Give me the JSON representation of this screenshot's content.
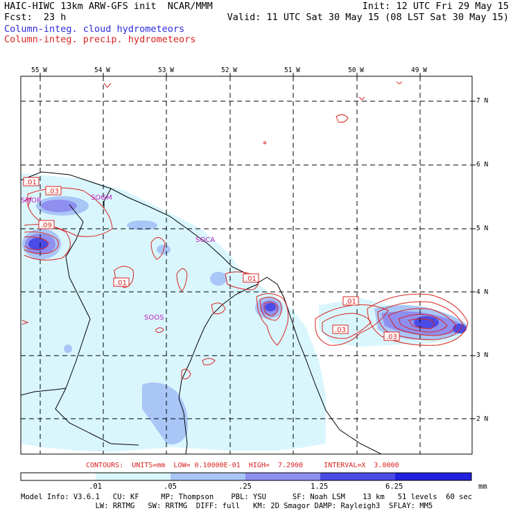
{
  "header": {
    "title": "HAIC-HIWC 13km ARW-GFS init  NCAR/MMM",
    "init": "Init: 12 UTC Fri 29 May 15",
    "fcst": "Fcst:  23 h",
    "valid": "Valid: 11 UTC Sat 30 May 15 (08 LST Sat 30 May 15)",
    "legend_blue": "Column-integ. cloud hydrometeors",
    "legend_red": "Column-integ. precip. hydrometeors"
  },
  "map": {
    "lon_labels": [
      "55 W",
      "54 W",
      "53 W",
      "52 W",
      "51 W",
      "50 W",
      "49 W"
    ],
    "lat_labels": [
      "7 N",
      "6 N",
      "5 N",
      "4 N",
      "3 N",
      "2 N"
    ],
    "place_labels": [
      "SMOR",
      "SOGM",
      "SOCA",
      "SOOS"
    ],
    "contour_labels": [
      ".01",
      ".03",
      ".09",
      ".01",
      ".01",
      ".01",
      ".03",
      ".03"
    ],
    "colors": {
      "fill_1": "#d9f6fd",
      "fill_2": "#a9c6f7",
      "fill_3": "#8f8ff0",
      "fill_4": "#4b4be6",
      "contour": "#d8231f",
      "station": "#c020c0"
    }
  },
  "contours_info": "CONTOURS:  UNITS=mm  LOW= 0.10000E-01  HIGH=  7.2900     INTERVAL=X  3.0000",
  "scale": {
    "labels": [
      ".01",
      ".05",
      ".25",
      "1.25",
      "6.25"
    ],
    "unit": "mm",
    "colors": [
      "#ffffff",
      "#d9f6fd",
      "#a9c6f7",
      "#8f8ff0",
      "#4b4be6",
      "#2020e0"
    ]
  },
  "footer": {
    "line1": "Model Info: V3.6.1   CU: KF     MP: Thompson    PBL: YSU      SF: Noah LSM    13 km   51 levels  60 sec",
    "line2": "                 LW: RRTMG   SW: RRTMG  DIFF: full   KM: 2D Smagor DAMP: Rayleigh3  SFLAY: MM5"
  }
}
